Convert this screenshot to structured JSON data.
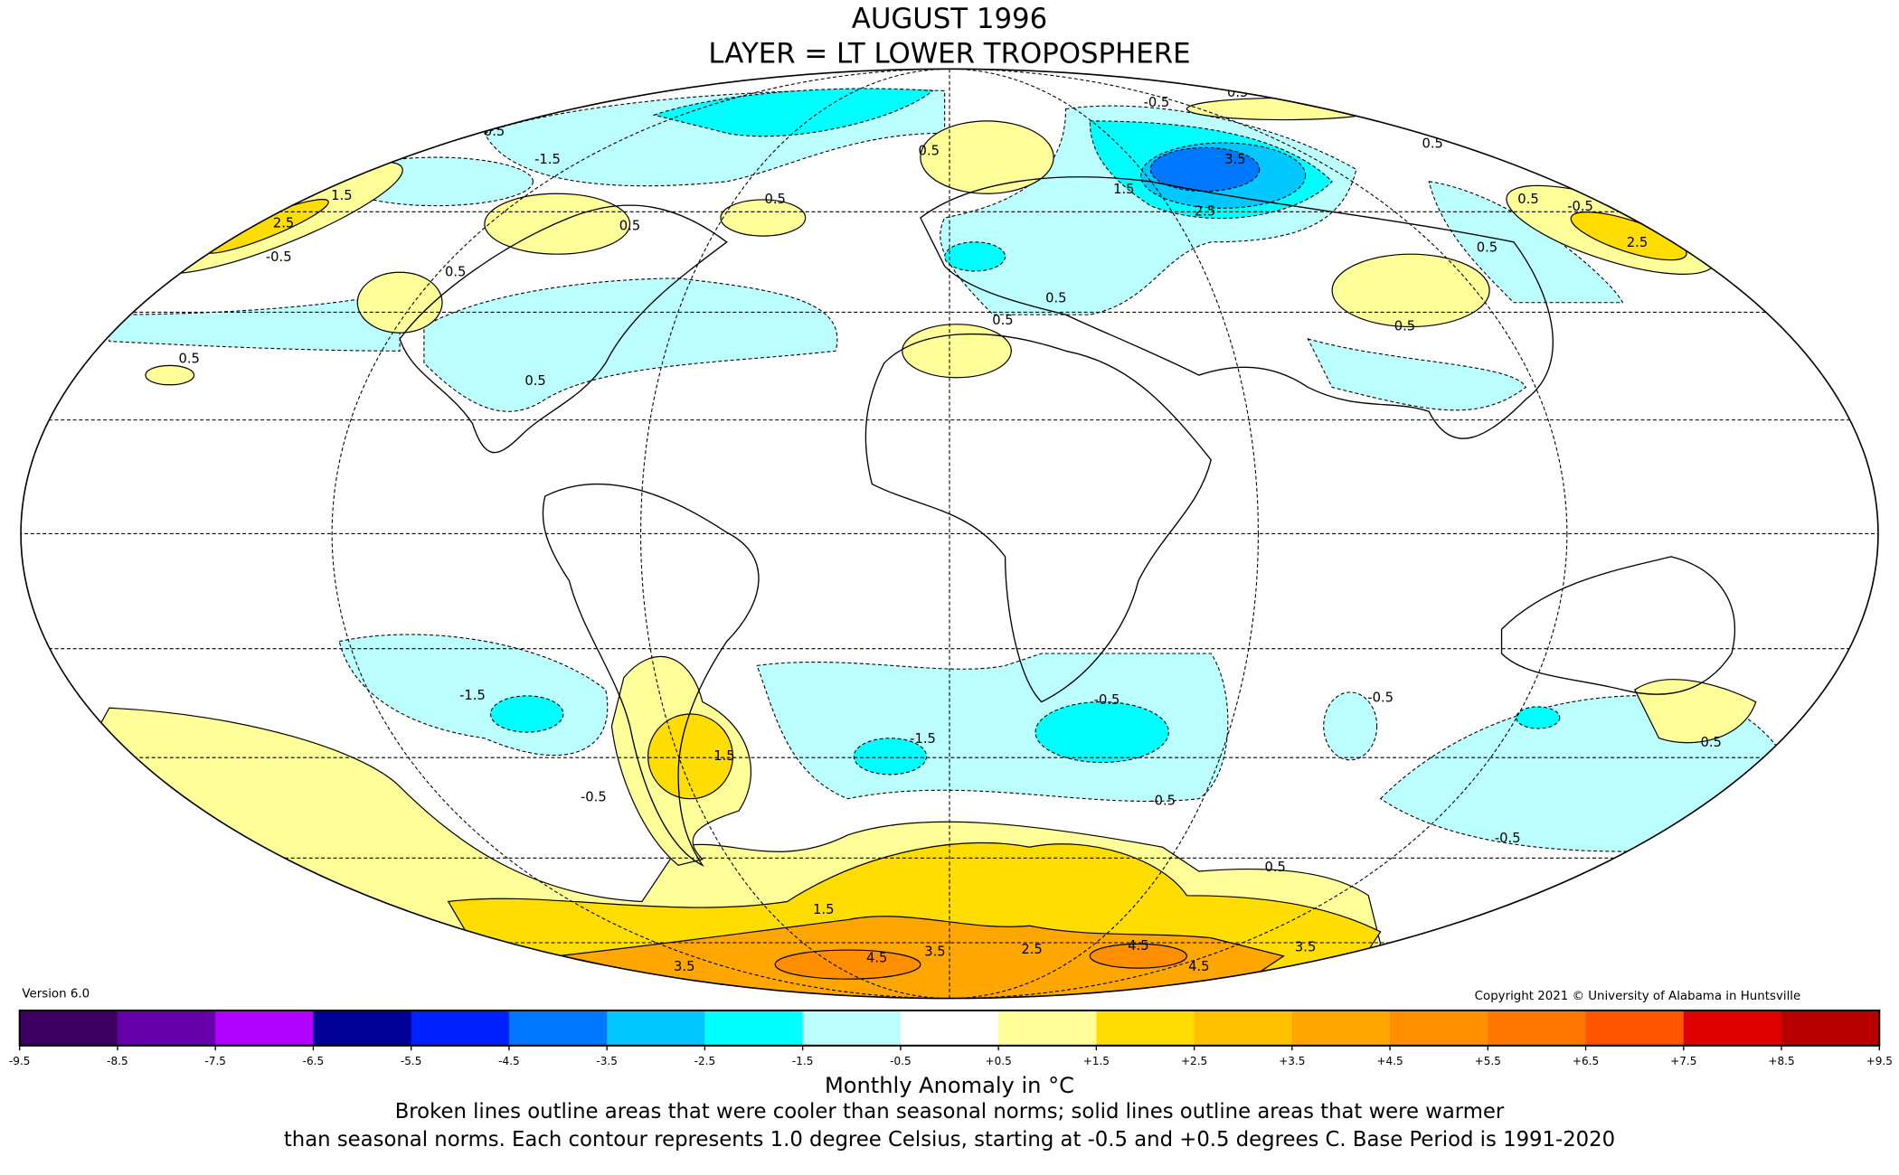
{
  "title": {
    "line1": "AUGUST 1996",
    "line2": "LAYER = LT LOWER TROPOSPHERE"
  },
  "version": "Version 6.0",
  "copyright": "Copyright 2021 © University of Alabama in Huntsville",
  "chart_data": {
    "type": "heatmap",
    "projection": "Mollweide global map",
    "colorbar": {
      "ticks": [
        "-9.5",
        "-8.5",
        "-7.5",
        "-6.5",
        "-5.5",
        "-4.5",
        "-3.5",
        "-2.5",
        "-1.5",
        "-0.5",
        "+0.5",
        "+1.5",
        "+2.5",
        "+3.5",
        "+4.5",
        "+5.5",
        "+6.5",
        "+7.5",
        "+8.5",
        "+9.5"
      ],
      "colors": [
        "#3c0062",
        "#6600aa",
        "#b000ff",
        "#000096",
        "#0022ff",
        "#0077ff",
        "#00c8ff",
        "#00ffff",
        "#bbffff",
        "#ffffff",
        "#ffff99",
        "#ffdd00",
        "#ffc000",
        "#ffa600",
        "#ff8e00",
        "#ff7700",
        "#ff5500",
        "#e00000",
        "#b80000"
      ],
      "label": "Monthly Anomaly in °C"
    },
    "contour_labels": [
      "-1.5",
      "0.5",
      "0.5",
      "0.5",
      "0.5",
      "-0.5",
      "0.5",
      "3.5",
      "1.5",
      "2.5",
      "1.5",
      "2.5",
      "-0.5",
      "0.5",
      "0.5",
      "0.5",
      "0.5",
      "0.5",
      "0.5",
      "0.5",
      "-1.5",
      "1.5",
      "-0.5",
      "-1.5",
      "-0.5",
      "-0.5",
      "-0.5",
      "0.5",
      "-0.5",
      "1.5",
      "4.5",
      "3.5",
      "2.5",
      "4.5",
      "4.5",
      "3.5",
      "3.5",
      "0.5",
      "0.5",
      "0.5",
      "-0.5",
      "2.5"
    ]
  },
  "footer": {
    "line1": "Broken lines outline areas that were cooler than seasonal norms; solid lines outline areas that were warmer",
    "line2": "than seasonal norms. Each contour represents 1.0 degree Celsius, starting at -0.5 and +0.5 degrees C. Base Period is 1991-2020"
  }
}
